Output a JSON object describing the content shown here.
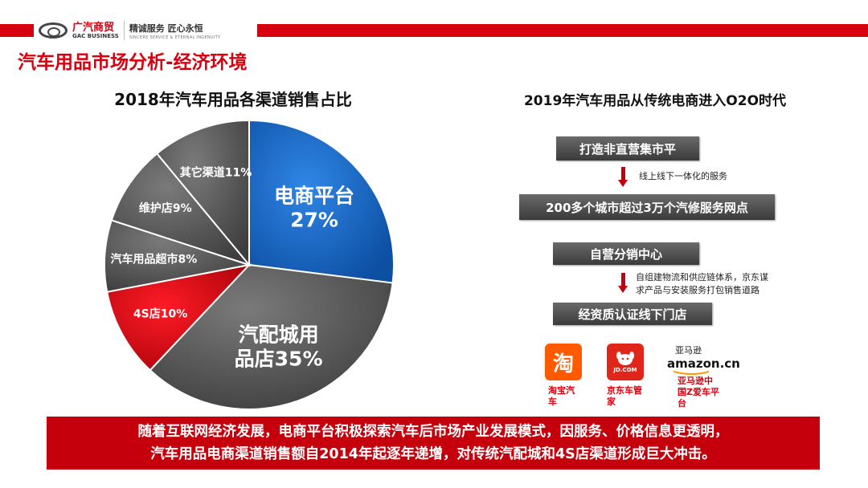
{
  "header": {
    "logo_cn": "广汽商贸",
    "logo_en": "GAC BUSINESS",
    "slogan_cn": "精诚服务 匠心永恒",
    "slogan_en": "SINCERE SERVICE & ETERNAL INGENUITY",
    "accent_color": "#d7000f"
  },
  "page_title": "汽车用品市场分析-经济环境",
  "left": {
    "title": "2018年汽车用品各渠道销售占比"
  },
  "chart_data": {
    "type": "pie",
    "title": "2018年汽车用品各渠道销售占比",
    "slices": [
      {
        "label": "电商平台",
        "value": 27,
        "text": "电商平台\n27%",
        "color": "#1667c8"
      },
      {
        "label": "汽配城用品店",
        "value": 35,
        "text": "汽配城用\n品店35%",
        "color": "#545454"
      },
      {
        "label": "4S店",
        "value": 10,
        "text": "4S店10%",
        "color": "#c8000c"
      },
      {
        "label": "汽车用品超市",
        "value": 8,
        "text": "汽车用品超市8%",
        "color": "#5c5c5c"
      },
      {
        "label": "维护店",
        "value": 9,
        "text": "维护店9%",
        "color": "#5c5c5c"
      },
      {
        "label": "其它渠道",
        "value": 11,
        "text": "其它渠道11%",
        "color": "#5c5c5c"
      }
    ]
  },
  "right": {
    "title": "2019年汽车用品从传统电商进入O2O时代",
    "steps": [
      {
        "label": "打造非直营集市平"
      },
      {
        "label": "200多个城市超过3万个汽修服务网点"
      },
      {
        "label": "自营分销中心"
      },
      {
        "label": "经资质认证线下门店"
      }
    ],
    "notes": {
      "note1": "线上线下一体化的服务",
      "note2_line1": "自组建物流和供应链体系，京东谋",
      "note2_line2": "求产品与安装服务打包销售道路"
    },
    "brands": [
      {
        "icon": "taobao-icon",
        "glyph": "淘",
        "caption_line1": "淘宝汽",
        "caption_line2": "车"
      },
      {
        "icon": "jd-icon",
        "glyph": "JD.COM",
        "caption_line1": "京东车管",
        "caption_line2": "家"
      },
      {
        "icon": "amazon-icon",
        "glyph_cn": "亚马逊",
        "glyph_en": "amazon.cn",
        "caption_line1": "亚马逊中",
        "caption_line2": "国Z爱车平",
        "caption_line3": "台"
      }
    ]
  },
  "banner": {
    "line1": "随着互联网经济发展，电商平台积极探索汽车后市场产业发展模式，因服务、价格信息更透明，",
    "line2": "汽车用品电商渠道销售额自2014年起逐年递增，对传统汽配城和4S店渠道形成巨大冲击。"
  }
}
